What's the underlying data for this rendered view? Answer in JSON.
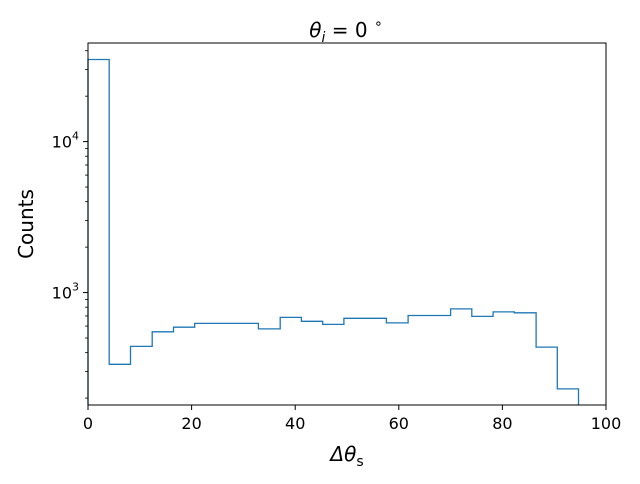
{
  "chart_data": {
    "type": "histogram",
    "title": "θ_i = 0 °",
    "title_parts": {
      "base": "θ",
      "sub": "i",
      "rest": " = 0 ",
      "sup": "∘"
    },
    "xlabel": "Δθ_s",
    "xlabel_parts": {
      "base": "Δθ",
      "sub": "s"
    },
    "ylabel": "Counts",
    "xlim": [
      0,
      100
    ],
    "ylim": [
      180,
      45000
    ],
    "yscale": "log",
    "grid": false,
    "legend": "none",
    "x_ticks": [
      0,
      20,
      40,
      60,
      80,
      100
    ],
    "x_tick_labels": [
      "0",
      "20",
      "40",
      "60",
      "80",
      "100"
    ],
    "y_major_ticks": [
      1000,
      10000
    ],
    "y_tick_labels": [
      {
        "base": "10",
        "exp": "3"
      },
      {
        "base": "10",
        "exp": "4"
      }
    ],
    "bin_edges": [
      0,
      4.1,
      8.2,
      12.4,
      16.5,
      20.6,
      24.7,
      28.8,
      32.9,
      37.1,
      41.2,
      45.3,
      49.4,
      53.5,
      57.6,
      61.8,
      65.9,
      70.0,
      74.1,
      78.2,
      82.3,
      86.5,
      90.6,
      94.7
    ],
    "counts": [
      35000,
      335,
      440,
      550,
      590,
      625,
      625,
      625,
      575,
      685,
      645,
      615,
      675,
      675,
      630,
      705,
      705,
      780,
      695,
      745,
      735,
      435,
      230
    ],
    "line_color": "#1f77b4"
  }
}
